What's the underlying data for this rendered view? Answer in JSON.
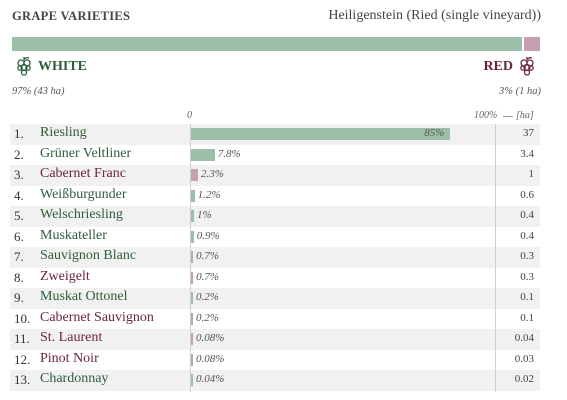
{
  "header": {
    "title": "GRAPE VARIETIES",
    "subtitle": "Heiligenstein (Ried (single vineyard))"
  },
  "groups": {
    "white": {
      "label": "WHITE",
      "share": "97% (43 ha)",
      "fraction": 0.97,
      "color": "#9cbfaa",
      "text_color": "#2f5d3a",
      "icon": "white-grape-icon"
    },
    "red": {
      "label": "RED",
      "share": "3% (1 ha)",
      "fraction": 0.03,
      "color": "#c4a1b0",
      "text_color": "#6b2440",
      "icon": "red-grape-icon"
    }
  },
  "axis": {
    "start": "0",
    "end": "100%",
    "ha_header": "[ha]"
  },
  "chart_data": {
    "type": "bar",
    "title": "GRAPE VARIETIES",
    "subtitle": "Heiligenstein (Ried (single vineyard))",
    "categories": [
      "Riesling",
      "Grüner Veltliner",
      "Cabernet Franc",
      "Weißburgunder",
      "Welschriesling",
      "Muskateller",
      "Sauvignon Blanc",
      "Zweigelt",
      "Muskat Ottonel",
      "Cabernet Sauvignon",
      "St. Laurent",
      "Pinot Noir",
      "Chardonnay"
    ],
    "ranks": [
      "1.",
      "2.",
      "3.",
      "4.",
      "5.",
      "6.",
      "7.",
      "8.",
      "9.",
      "10.",
      "11.",
      "12.",
      "13."
    ],
    "values": [
      85,
      7.8,
      2.3,
      1.2,
      1,
      0.9,
      0.7,
      0.7,
      0.2,
      0.2,
      0.08,
      0.08,
      0.04
    ],
    "value_labels": [
      "85%",
      "7.8%",
      "2.3%",
      "1.2%",
      "1%",
      "0.9%",
      "0.7%",
      "0.7%",
      "0.2%",
      "0.2%",
      "0.08%",
      "0.08%",
      "0.04%"
    ],
    "hectares": [
      "37",
      "3.4",
      "1",
      "0.6",
      "0.4",
      "0.4",
      "0.3",
      "0.3",
      "0.1",
      "0.1",
      "0.04",
      "0.03",
      "0.02"
    ],
    "color_group": [
      "white",
      "white",
      "red",
      "white",
      "white",
      "white",
      "white",
      "red",
      "white",
      "red",
      "red",
      "red",
      "white"
    ],
    "xlim": [
      0,
      100
    ]
  }
}
